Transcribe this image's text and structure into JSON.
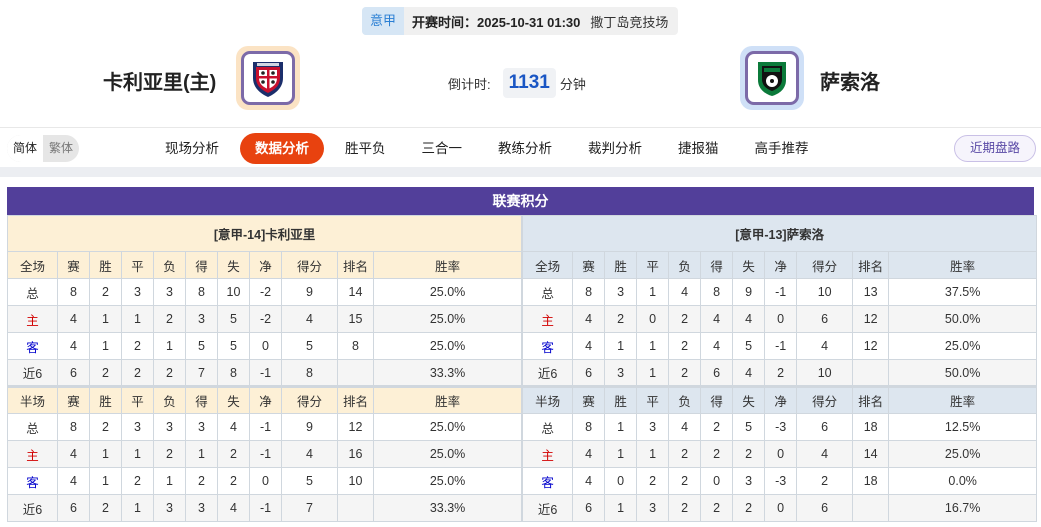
{
  "match": {
    "league": "意甲",
    "time_label": "开赛时间：2025-10-31 01:30",
    "venue": "撒丁岛竞技场",
    "home": "卡利亚里(主)",
    "away": "萨索洛",
    "countdown_label": "倒计时:",
    "countdown_value": "1131",
    "countdown_unit": "分钟",
    "home_logo": "cagliari-crest",
    "away_logo": "sassuolo-crest"
  },
  "lang": {
    "simplified": "简体",
    "traditional": "繁体"
  },
  "nav": {
    "items": [
      "现场分析",
      "数据分析",
      "胜平负",
      "三合一",
      "教练分析",
      "裁判分析",
      "捷报猫",
      "高手推荐"
    ],
    "active": 1,
    "recent": "近期盘路"
  },
  "colors": {
    "accent": "#e8420f",
    "title_bar": "#523f9a",
    "home_label": "#d10000",
    "away_label": "#0000cc"
  },
  "standings": {
    "title": "联赛积分",
    "columns": [
      "赛",
      "胜",
      "平",
      "负",
      "得",
      "失",
      "净",
      "得分",
      "排名",
      "胜率"
    ],
    "teams": [
      {
        "header": "[意甲-14]卡利亚里",
        "full": {
          "label": "全场",
          "rows": [
            [
              "总",
              "8",
              "2",
              "3",
              "3",
              "8",
              "10",
              "-2",
              "9",
              "14",
              "25.0%"
            ],
            [
              "主",
              "4",
              "1",
              "1",
              "2",
              "3",
              "5",
              "-2",
              "4",
              "15",
              "25.0%"
            ],
            [
              "客",
              "4",
              "1",
              "2",
              "1",
              "5",
              "5",
              "0",
              "5",
              "8",
              "25.0%"
            ],
            [
              "近6",
              "6",
              "2",
              "2",
              "2",
              "7",
              "8",
              "-1",
              "8",
              "",
              "33.3%"
            ]
          ]
        },
        "half": {
          "label": "半场",
          "rows": [
            [
              "总",
              "8",
              "2",
              "3",
              "3",
              "3",
              "4",
              "-1",
              "9",
              "12",
              "25.0%"
            ],
            [
              "主",
              "4",
              "1",
              "1",
              "2",
              "1",
              "2",
              "-1",
              "4",
              "16",
              "25.0%"
            ],
            [
              "客",
              "4",
              "1",
              "2",
              "1",
              "2",
              "2",
              "0",
              "5",
              "10",
              "25.0%"
            ],
            [
              "近6",
              "6",
              "2",
              "1",
              "3",
              "3",
              "4",
              "-1",
              "7",
              "",
              "33.3%"
            ]
          ]
        }
      },
      {
        "header": "[意甲-13]萨索洛",
        "full": {
          "label": "全场",
          "rows": [
            [
              "总",
              "8",
              "3",
              "1",
              "4",
              "8",
              "9",
              "-1",
              "10",
              "13",
              "37.5%"
            ],
            [
              "主",
              "4",
              "2",
              "0",
              "2",
              "4",
              "4",
              "0",
              "6",
              "12",
              "50.0%"
            ],
            [
              "客",
              "4",
              "1",
              "1",
              "2",
              "4",
              "5",
              "-1",
              "4",
              "12",
              "25.0%"
            ],
            [
              "近6",
              "6",
              "3",
              "1",
              "2",
              "6",
              "4",
              "2",
              "10",
              "",
              "50.0%"
            ]
          ]
        },
        "half": {
          "label": "半场",
          "rows": [
            [
              "总",
              "8",
              "1",
              "3",
              "4",
              "2",
              "5",
              "-3",
              "6",
              "18",
              "12.5%"
            ],
            [
              "主",
              "4",
              "1",
              "1",
              "2",
              "2",
              "2",
              "0",
              "4",
              "14",
              "25.0%"
            ],
            [
              "客",
              "4",
              "0",
              "2",
              "2",
              "0",
              "3",
              "-3",
              "2",
              "18",
              "0.0%"
            ],
            [
              "近6",
              "6",
              "1",
              "3",
              "2",
              "2",
              "2",
              "0",
              "6",
              "",
              "16.7%"
            ]
          ]
        }
      }
    ]
  }
}
